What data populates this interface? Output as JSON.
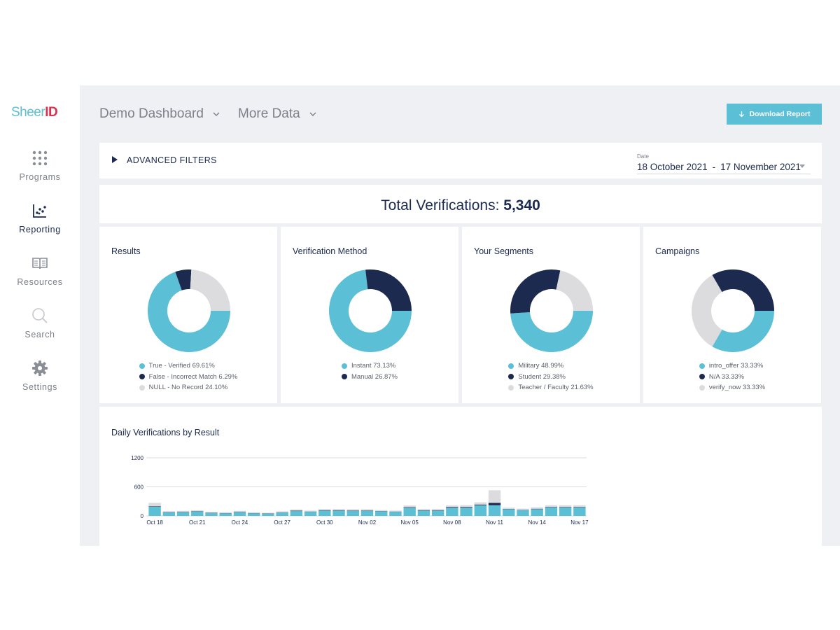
{
  "colors": {
    "accent": "#5bbfd6",
    "navy": "#1b2a4e",
    "grey": "#dcdcde",
    "background": "#eef0f4",
    "logo_red": "#d9304f"
  },
  "logo": {
    "part1": "Sheer",
    "part2": "ID"
  },
  "sidebar": {
    "items": [
      {
        "label": "Programs",
        "icon": "grid-dots-icon",
        "active": false
      },
      {
        "label": "Reporting",
        "icon": "scatter-chart-icon",
        "active": true
      },
      {
        "label": "Resources",
        "icon": "book-icon",
        "active": false
      },
      {
        "label": "Search",
        "icon": "search-icon",
        "active": false
      },
      {
        "label": "Settings",
        "icon": "gear-icon",
        "active": false
      }
    ]
  },
  "header": {
    "dashboard_select": "Demo Dashboard",
    "data_select": "More Data",
    "download_label": "Download Report",
    "download_icon": "arrow-down-icon"
  },
  "filters": {
    "label": "ADVANCED FILTERS",
    "date_label": "Date",
    "date_start": "18 October 2021",
    "date_sep": "-",
    "date_end": "17 November 2021"
  },
  "total": {
    "label": "Total Verifications:",
    "value": "5,340"
  },
  "chart_data": [
    {
      "type": "pie",
      "title": "Results",
      "labels": [
        "True - Verified",
        "False - Incorrect Match",
        "NULL - No Record"
      ],
      "values": [
        69.61,
        6.29,
        24.1
      ],
      "legend": [
        "True - Verified 69.61%",
        "False - Incorrect Match 6.29%",
        "NULL - No Record 24.10%"
      ],
      "colors": [
        "#5bbfd6",
        "#1b2a4e",
        "#dcdcde"
      ]
    },
    {
      "type": "pie",
      "title": "Verification Method",
      "labels": [
        "Instant",
        "Manual"
      ],
      "values": [
        73.13,
        26.87
      ],
      "legend": [
        "Instant 73.13%",
        "Manual 26.87%"
      ],
      "colors": [
        "#5bbfd6",
        "#1b2a4e"
      ]
    },
    {
      "type": "pie",
      "title": "Your Segments",
      "labels": [
        "Military",
        "Student",
        "Teacher / Faculty"
      ],
      "values": [
        48.99,
        29.38,
        21.63
      ],
      "legend": [
        "Military 48.99%",
        "Student 29.38%",
        "Teacher / Faculty 21.63%"
      ],
      "colors": [
        "#5bbfd6",
        "#1b2a4e",
        "#dcdcde"
      ]
    },
    {
      "type": "pie",
      "title": "Campaigns",
      "labels": [
        "intro_offer",
        "N/A",
        "verify_now"
      ],
      "values": [
        33.33,
        33.33,
        33.33
      ],
      "legend": [
        "intro_offer 33.33%",
        "N/A 33.33%",
        "verify_now 33.33%"
      ],
      "colors": [
        "#5bbfd6",
        "#1b2a4e",
        "#dcdcde"
      ],
      "start_order": [
        0,
        2,
        1
      ]
    },
    {
      "type": "bar",
      "stacked": true,
      "title": "Daily Verifications by Result",
      "x": [
        "Oct 18",
        "Oct 19",
        "Oct 20",
        "Oct 21",
        "Oct 22",
        "Oct 23",
        "Oct 24",
        "Oct 25",
        "Oct 26",
        "Oct 27",
        "Oct 28",
        "Oct 29",
        "Oct 30",
        "Oct 31",
        "Nov 01",
        "Nov 02",
        "Nov 03",
        "Nov 04",
        "Nov 05",
        "Nov 06",
        "Nov 07",
        "Nov 08",
        "Nov 09",
        "Nov 10",
        "Nov 11",
        "Nov 12",
        "Nov 13",
        "Nov 14",
        "Nov 15",
        "Nov 16",
        "Nov 17"
      ],
      "tick_labels": [
        "Oct 18",
        "Oct 21",
        "Oct 24",
        "Oct 27",
        "Oct 30",
        "Nov 02",
        "Nov 05",
        "Nov 08",
        "Nov 11",
        "Nov 14",
        "Nov 17"
      ],
      "yticks": [
        "1200",
        "600",
        "0"
      ],
      "ylim": [
        0,
        1200
      ],
      "series": [
        {
          "values": [
            190,
            75,
            80,
            90,
            60,
            55,
            80,
            55,
            45,
            70,
            100,
            85,
            110,
            110,
            105,
            105,
            95,
            85,
            170,
            110,
            110,
            170,
            170,
            220,
            220,
            140,
            120,
            140,
            175,
            175,
            175
          ]
        },
        {
          "values": [
            10,
            5,
            5,
            8,
            5,
            5,
            5,
            5,
            5,
            5,
            8,
            5,
            8,
            8,
            8,
            8,
            5,
            5,
            10,
            8,
            8,
            15,
            15,
            15,
            50,
            5,
            5,
            8,
            10,
            10,
            10
          ]
        },
        {
          "values": [
            70,
            15,
            20,
            20,
            15,
            15,
            20,
            15,
            15,
            20,
            25,
            20,
            25,
            25,
            25,
            25,
            20,
            20,
            35,
            25,
            25,
            30,
            35,
            45,
            260,
            25,
            25,
            30,
            35,
            35,
            35
          ]
        }
      ],
      "colors": [
        "#5bbfd6",
        "#1b2a4e",
        "#dcdcde"
      ]
    }
  ]
}
